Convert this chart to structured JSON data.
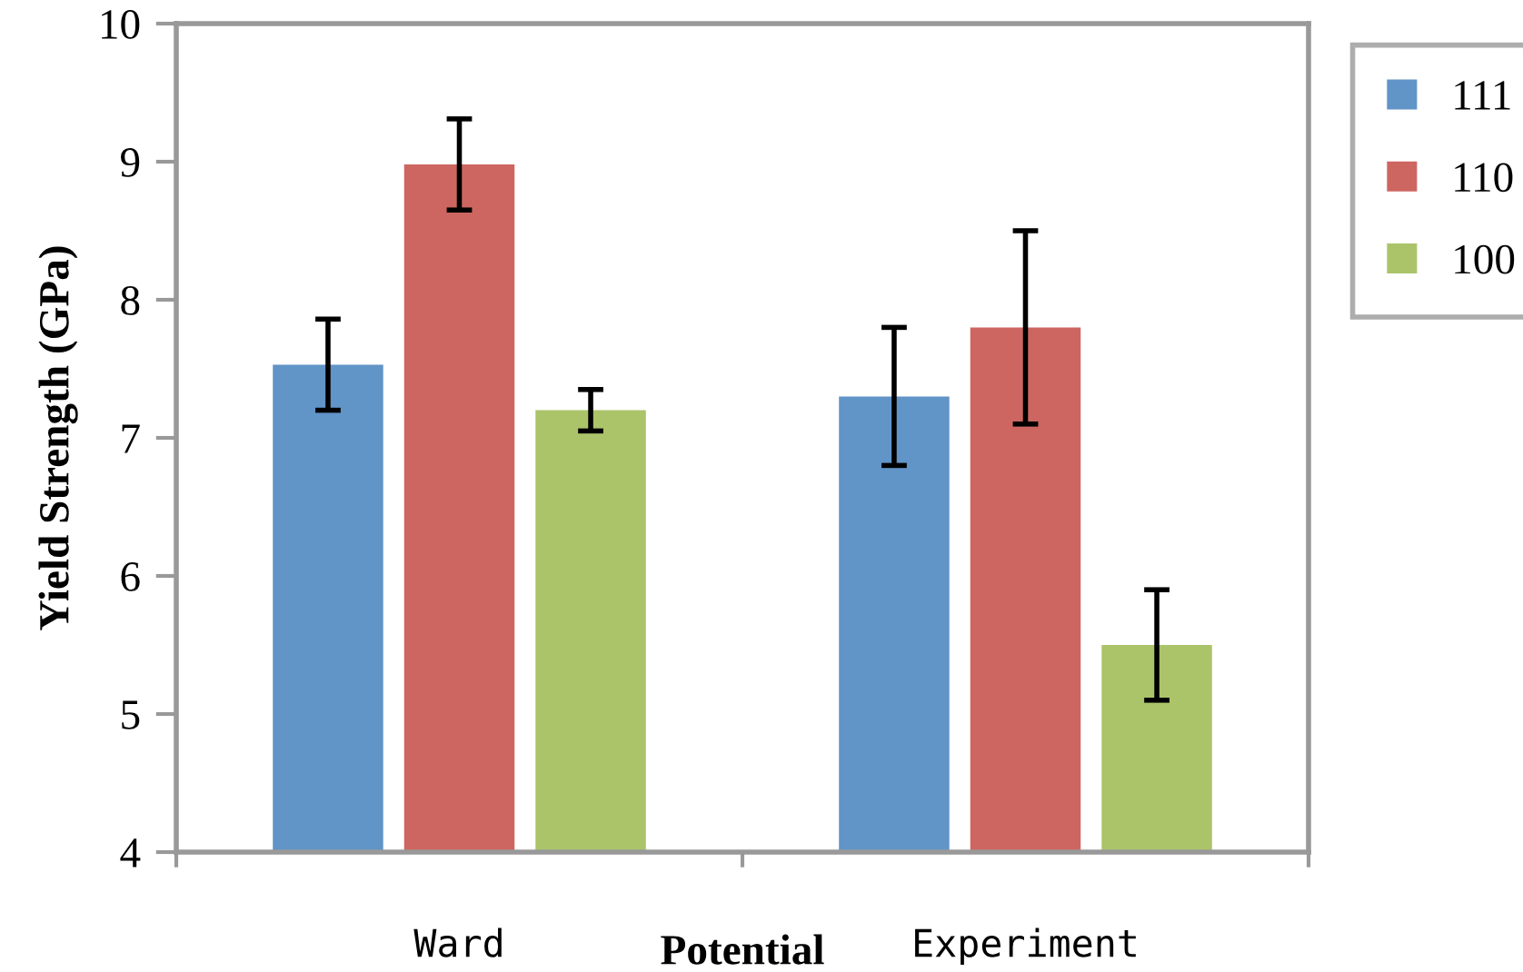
{
  "chart_data": {
    "type": "bar",
    "xlabel": "Potential",
    "ylabel": "Yield Strength (GPa)",
    "categories": [
      "Ward",
      "Experiment"
    ],
    "series": [
      {
        "name": "111",
        "color": "#6194c7",
        "values": [
          7.53,
          7.3
        ],
        "errors": [
          0.33,
          0.5
        ]
      },
      {
        "name": "110",
        "color": "#cd6660",
        "values": [
          8.98,
          7.8
        ],
        "errors": [
          0.33,
          0.7
        ]
      },
      {
        "name": "100",
        "color": "#abc46a",
        "values": [
          7.2,
          5.5
        ],
        "errors": [
          0.15,
          0.4
        ]
      }
    ],
    "ylim": [
      4,
      10
    ],
    "yticks": [
      4,
      5,
      6,
      7,
      8,
      9,
      10
    ],
    "grid": false,
    "legend": "top right"
  }
}
